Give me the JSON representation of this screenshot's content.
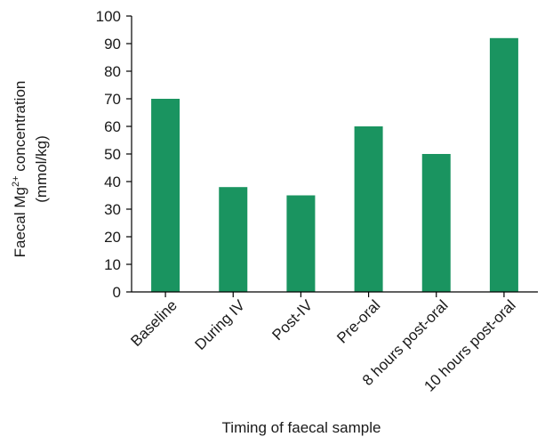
{
  "chart_data": {
    "type": "bar",
    "title": "",
    "xlabel": "Timing of faecal sample",
    "ylabel": {
      "line1_prefix": "Faecal Mg",
      "line1_sup": "2+",
      "line1_suffix": " concentration",
      "line2": "(mmol/kg)"
    },
    "categories": [
      "Baseline",
      "During IV",
      "Post-IV",
      "Pre-oral",
      "8 hours post-oral",
      "10 hours post-oral"
    ],
    "values": [
      70,
      38,
      35,
      60,
      50,
      92
    ],
    "ylim": [
      0,
      100
    ],
    "yticks": [
      0,
      10,
      20,
      30,
      40,
      50,
      60,
      70,
      80,
      90,
      100
    ],
    "grid": false,
    "legend": "none",
    "bar_color": "#1a9460",
    "axis_color": "#000000"
  }
}
